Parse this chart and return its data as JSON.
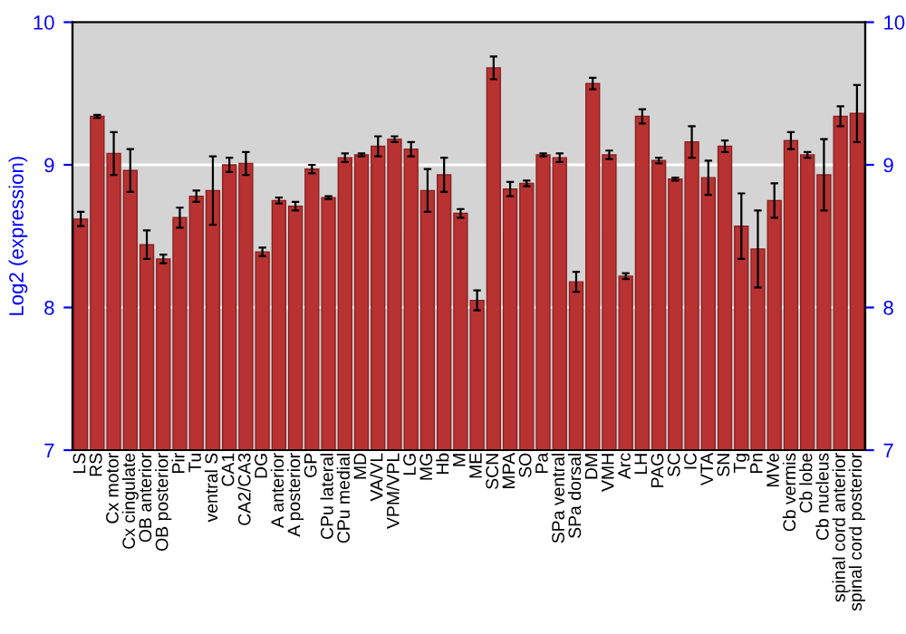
{
  "chart_data": {
    "type": "bar",
    "ylabel": "Log2 (expression)",
    "categories": [
      "LS",
      "RS",
      "Cx motor",
      "Cx cingulate",
      "OB anterior",
      "OB posterior",
      "Pir",
      "Tu",
      "ventral S",
      "CA1",
      "CA2/CA3",
      "DG",
      "A anterior",
      "A posterior",
      "GP",
      "CPu lateral",
      "CPu medial",
      "MD",
      "VA/VL",
      "VPM/VPL",
      "LG",
      "MG",
      "Hb",
      "M",
      "ME",
      "SCN",
      "MPA",
      "SO",
      "Pa",
      "SPa ventral",
      "SPa dorsal",
      "DM",
      "VMH",
      "Arc",
      "LH",
      "PAG",
      "SC",
      "IC",
      "VTA",
      "SN",
      "Tg",
      "Pn",
      "MVe",
      "Cb vermis",
      "Cb lobe",
      "Cb nucleus",
      "spinal cord anterior",
      "spinal cord posterior"
    ],
    "values": [
      8.62,
      9.34,
      9.08,
      8.96,
      8.44,
      8.34,
      8.63,
      8.78,
      8.82,
      9.0,
      9.01,
      8.39,
      8.75,
      8.71,
      8.97,
      8.77,
      9.05,
      9.07,
      9.13,
      9.18,
      9.11,
      8.82,
      8.93,
      8.66,
      8.05,
      9.68,
      8.83,
      8.87,
      9.07,
      9.05,
      8.18,
      9.57,
      9.07,
      8.22,
      9.34,
      9.03,
      8.9,
      9.16,
      8.91,
      9.13,
      8.57,
      8.41,
      8.75,
      9.17,
      9.07,
      8.93,
      9.34,
      9.36
    ],
    "errors": [
      0.05,
      0.01,
      0.15,
      0.15,
      0.1,
      0.03,
      0.07,
      0.04,
      0.24,
      0.05,
      0.08,
      0.03,
      0.02,
      0.03,
      0.03,
      0.01,
      0.03,
      0.01,
      0.07,
      0.02,
      0.05,
      0.15,
      0.12,
      0.03,
      0.07,
      0.08,
      0.05,
      0.02,
      0.01,
      0.03,
      0.07,
      0.04,
      0.03,
      0.02,
      0.05,
      0.02,
      0.01,
      0.11,
      0.12,
      0.04,
      0.23,
      0.27,
      0.12,
      0.06,
      0.02,
      0.25,
      0.07,
      0.2
    ],
    "color": "#b83232",
    "ylim": [
      7,
      10
    ],
    "yticks": [
      7,
      8,
      9,
      10
    ],
    "y2lim": [
      7,
      10
    ],
    "y2ticks": [
      7,
      8,
      9,
      10
    ],
    "grid": "y"
  }
}
